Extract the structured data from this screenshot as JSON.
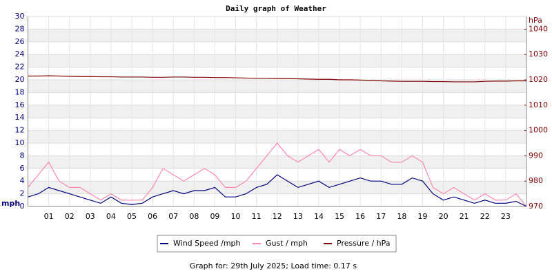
{
  "chart_data": {
    "type": "line",
    "title": "Daily graph of Weather",
    "y_label": "mph",
    "y2_label": "hPa",
    "footer": "Graph for: 29th July 2025; Load time: 0.17 s",
    "x": [
      0,
      0.5,
      1,
      1.5,
      2,
      2.5,
      3,
      3.5,
      4,
      4.5,
      5,
      5.5,
      6,
      6.5,
      7,
      7.5,
      8,
      8.5,
      9,
      9.5,
      10,
      10.5,
      11,
      11.5,
      12,
      12.5,
      13,
      13.5,
      14,
      14.5,
      15,
      15.5,
      16,
      16.5,
      17,
      17.5,
      18,
      18.5,
      19,
      19.5,
      20,
      20.5,
      21,
      21.5,
      22,
      22.5,
      23,
      23.5,
      24
    ],
    "xlim": [
      0,
      24
    ],
    "xticks": [
      {
        "value": 1,
        "label": "01"
      },
      {
        "value": 2,
        "label": "02"
      },
      {
        "value": 3,
        "label": "03"
      },
      {
        "value": 4,
        "label": "04"
      },
      {
        "value": 5,
        "label": "05"
      },
      {
        "value": 6,
        "label": "06"
      },
      {
        "value": 7,
        "label": "07"
      },
      {
        "value": 8,
        "label": "08"
      },
      {
        "value": 9,
        "label": "09"
      },
      {
        "value": 10,
        "label": "10"
      },
      {
        "value": 11,
        "label": "11"
      },
      {
        "value": 12,
        "label": "12"
      },
      {
        "value": 13,
        "label": "13"
      },
      {
        "value": 14,
        "label": "14"
      },
      {
        "value": 15,
        "label": "15"
      },
      {
        "value": 16,
        "label": "16"
      },
      {
        "value": 17,
        "label": "17"
      },
      {
        "value": 18,
        "label": "18"
      },
      {
        "value": 19,
        "label": "19"
      },
      {
        "value": 20,
        "label": "20"
      },
      {
        "value": 21,
        "label": "21"
      },
      {
        "value": 22,
        "label": "22"
      },
      {
        "value": 23,
        "label": "23"
      }
    ],
    "ylim": [
      0,
      30
    ],
    "yticks": [
      0,
      2,
      4,
      6,
      8,
      10,
      12,
      14,
      16,
      18,
      20,
      22,
      24,
      26,
      28,
      30
    ],
    "y2lim": [
      970,
      1045
    ],
    "y2ticks": [
      970,
      980,
      990,
      1000,
      1010,
      1020,
      1030,
      1040
    ],
    "grid": true,
    "series": [
      {
        "name": "Wind Speed /mph",
        "color": "#000080",
        "values": [
          1.5,
          2,
          3,
          2.5,
          2,
          1.5,
          1,
          0.5,
          1.5,
          0.5,
          0.3,
          0.5,
          1.5,
          2,
          2.5,
          2,
          2.5,
          2.5,
          3,
          1.5,
          1.5,
          2,
          3,
          3.5,
          5,
          4,
          3,
          3.5,
          4,
          3,
          3.5,
          4,
          4.5,
          4,
          4,
          3.5,
          3.5,
          4.5,
          4,
          2,
          1,
          1.5,
          1,
          0.5,
          1,
          0.5,
          0.5,
          0.8,
          0
        ]
      },
      {
        "name": "Gust / mph",
        "color": "#ff88aa",
        "values": [
          3,
          5,
          7,
          4,
          3,
          3,
          2,
          1,
          2,
          1,
          1,
          1,
          3,
          6,
          5,
          4,
          5,
          6,
          5,
          3,
          3,
          4,
          6,
          8,
          10,
          8,
          7,
          8,
          9,
          7,
          9,
          8,
          9,
          8,
          8,
          7,
          7,
          8,
          7,
          3,
          2,
          3,
          2,
          1,
          2,
          1,
          1,
          2,
          0
        ]
      },
      {
        "name": "Pressure / hPa",
        "color": "#800000",
        "axis": "y2",
        "values": [
          1021.5,
          1021.5,
          1021.6,
          1021.5,
          1021.4,
          1021.3,
          1021.3,
          1021.2,
          1021.2,
          1021.1,
          1021.1,
          1021.1,
          1021.0,
          1021.0,
          1021.1,
          1021.1,
          1021.0,
          1021.0,
          1020.9,
          1020.9,
          1020.8,
          1020.7,
          1020.6,
          1020.6,
          1020.5,
          1020.5,
          1020.4,
          1020.3,
          1020.2,
          1020.2,
          1020.0,
          1020.0,
          1019.9,
          1019.8,
          1019.6,
          1019.5,
          1019.4,
          1019.4,
          1019.4,
          1019.3,
          1019.3,
          1019.2,
          1019.2,
          1019.2,
          1019.4,
          1019.5,
          1019.5,
          1019.6,
          1019.6
        ]
      }
    ]
  }
}
